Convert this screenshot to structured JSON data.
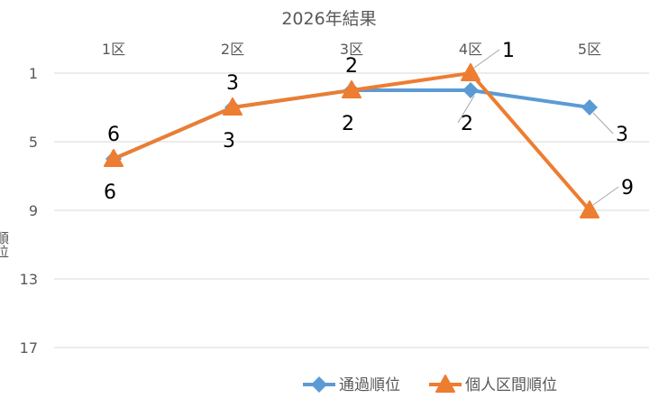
{
  "chart_data": {
    "type": "line",
    "title": "2026年結果",
    "categories": [
      "1区",
      "2区",
      "3区",
      "4区",
      "5区"
    ],
    "ylabel": "順位",
    "y_axis": {
      "min": 1,
      "max": 19,
      "inverted": true,
      "ticks": [
        1,
        5,
        9,
        13,
        17
      ]
    },
    "grid": "horizontal",
    "legend_position": "bottom",
    "series": [
      {
        "name": "通過順位",
        "values": [
          6,
          3,
          2,
          2,
          3
        ],
        "color": "#5b9bd5",
        "marker": "diamond"
      },
      {
        "name": "個人区間順位",
        "values": [
          6,
          3,
          2,
          1,
          9
        ],
        "color": "#ed7d31",
        "marker": "triangle"
      }
    ]
  }
}
